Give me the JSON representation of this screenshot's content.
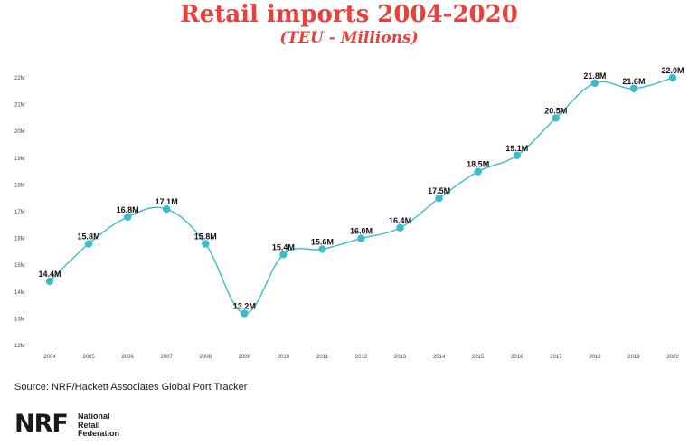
{
  "chart_data": {
    "type": "line",
    "title": "Retail imports 2004-2020",
    "subtitle": "(TEU - Millions)",
    "xlabel": "",
    "ylabel": "",
    "categories": [
      "2004",
      "2005",
      "2006",
      "2007",
      "2008",
      "2009",
      "2010",
      "2011",
      "2012",
      "2013",
      "2014",
      "2015",
      "2016",
      "2017",
      "2018",
      "2019",
      "2020"
    ],
    "series": [
      {
        "values": [
          14.4,
          15.8,
          16.8,
          17.1,
          15.8,
          13.2,
          15.4,
          15.6,
          16.0,
          16.4,
          17.5,
          18.5,
          19.1,
          20.5,
          21.8,
          21.6,
          22.0
        ],
        "labels": [
          "14.4M",
          "15.8M",
          "16.8M",
          "17.1M",
          "15.8M",
          "13.2M",
          "15.4M",
          "15.6M",
          "16.0M",
          "16.4M",
          "17.5M",
          "18.5M",
          "19.1M",
          "20.5M",
          "21.8M",
          "21.6M",
          "22.0M"
        ]
      }
    ],
    "yticks": [
      "12M",
      "13M",
      "14M",
      "15M",
      "16M",
      "17M",
      "18M",
      "19M",
      "20M",
      "21M",
      "22M"
    ],
    "ylim": [
      12,
      22
    ],
    "grid": false,
    "line_color": "#3bbccb"
  },
  "source": "Source: NRF/Hackett Associates Global Port Tracker",
  "logo": {
    "mark": "NRF",
    "line1": "National",
    "line2": "Retail",
    "line3": "Federation"
  }
}
